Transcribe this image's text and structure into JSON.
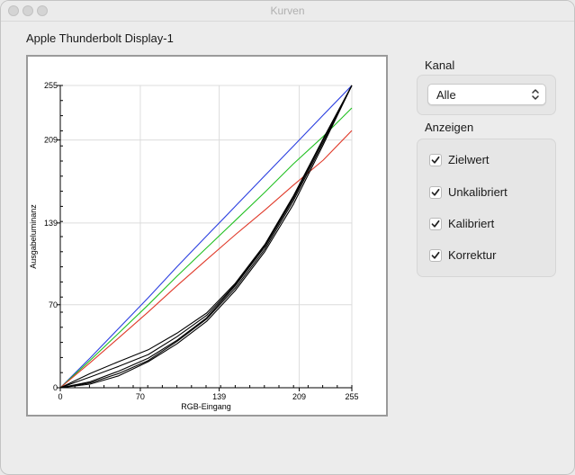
{
  "window": {
    "title": "Kurven"
  },
  "display_name": "Apple Thunderbolt Display-1",
  "kanal": {
    "label": "Kanal",
    "selected": "Alle"
  },
  "anzeigen": {
    "label": "Anzeigen",
    "items": [
      {
        "label": "Zielwert",
        "checked": true
      },
      {
        "label": "Unkalibriert",
        "checked": true
      },
      {
        "label": "Kalibriert",
        "checked": true
      },
      {
        "label": "Korrektur",
        "checked": true
      }
    ]
  },
  "chart_data": {
    "type": "line",
    "xlabel": "RGB-Eingang",
    "ylabel": "Ausgabeluminanz",
    "xlim": [
      0,
      255
    ],
    "ylim": [
      0,
      255
    ],
    "xticks": [
      0,
      70,
      139,
      209,
      255
    ],
    "yticks": [
      0,
      70,
      139,
      209,
      255
    ],
    "grid": true,
    "series": [
      {
        "color": "#2b3fe0",
        "x": [
          0,
          26,
          51,
          77,
          102,
          128,
          153,
          179,
          204,
          230,
          255
        ],
        "y": [
          0,
          25,
          50,
          76,
          102,
          128,
          153,
          179,
          204,
          230,
          255
        ]
      },
      {
        "color": "#22c022",
        "x": [
          0,
          26,
          51,
          77,
          102,
          128,
          153,
          179,
          204,
          230,
          255
        ],
        "y": [
          0,
          23,
          46,
          70,
          94,
          118,
          141,
          165,
          189,
          212,
          236
        ]
      },
      {
        "color": "#e03a2a",
        "x": [
          0,
          26,
          51,
          77,
          102,
          128,
          153,
          179,
          204,
          230,
          255
        ],
        "y": [
          0,
          21,
          42,
          64,
          86,
          108,
          129,
          150,
          171,
          192,
          217
        ]
      },
      {
        "color": "#000000",
        "x": [
          0,
          26,
          51,
          77,
          102,
          128,
          153,
          179,
          204,
          230,
          255
        ],
        "y": [
          0,
          3,
          10,
          22,
          37,
          56,
          82,
          115,
          155,
          205,
          255
        ]
      },
      {
        "color": "#000000",
        "x": [
          0,
          26,
          51,
          77,
          102,
          128,
          153,
          179,
          204,
          230,
          255
        ],
        "y": [
          0,
          4,
          12,
          23,
          39,
          58,
          84,
          117,
          158,
          207,
          255
        ]
      },
      {
        "color": "#000000",
        "x": [
          0,
          26,
          51,
          77,
          102,
          128,
          153,
          179,
          204,
          230,
          255
        ],
        "y": [
          0,
          5,
          14,
          25,
          40,
          59,
          86,
          119,
          160,
          209,
          255
        ]
      },
      {
        "color": "#000000",
        "x": [
          0,
          26,
          51,
          77,
          102,
          128,
          153,
          179,
          204,
          230,
          255
        ],
        "y": [
          0,
          9,
          18,
          28,
          43,
          61,
          87,
          120,
          161,
          210,
          255
        ]
      },
      {
        "color": "#000000",
        "x": [
          0,
          26,
          51,
          77,
          102,
          128,
          153,
          179,
          204,
          230,
          255
        ],
        "y": [
          0,
          12,
          22,
          32,
          46,
          63,
          88,
          121,
          162,
          210,
          255
        ]
      }
    ]
  }
}
